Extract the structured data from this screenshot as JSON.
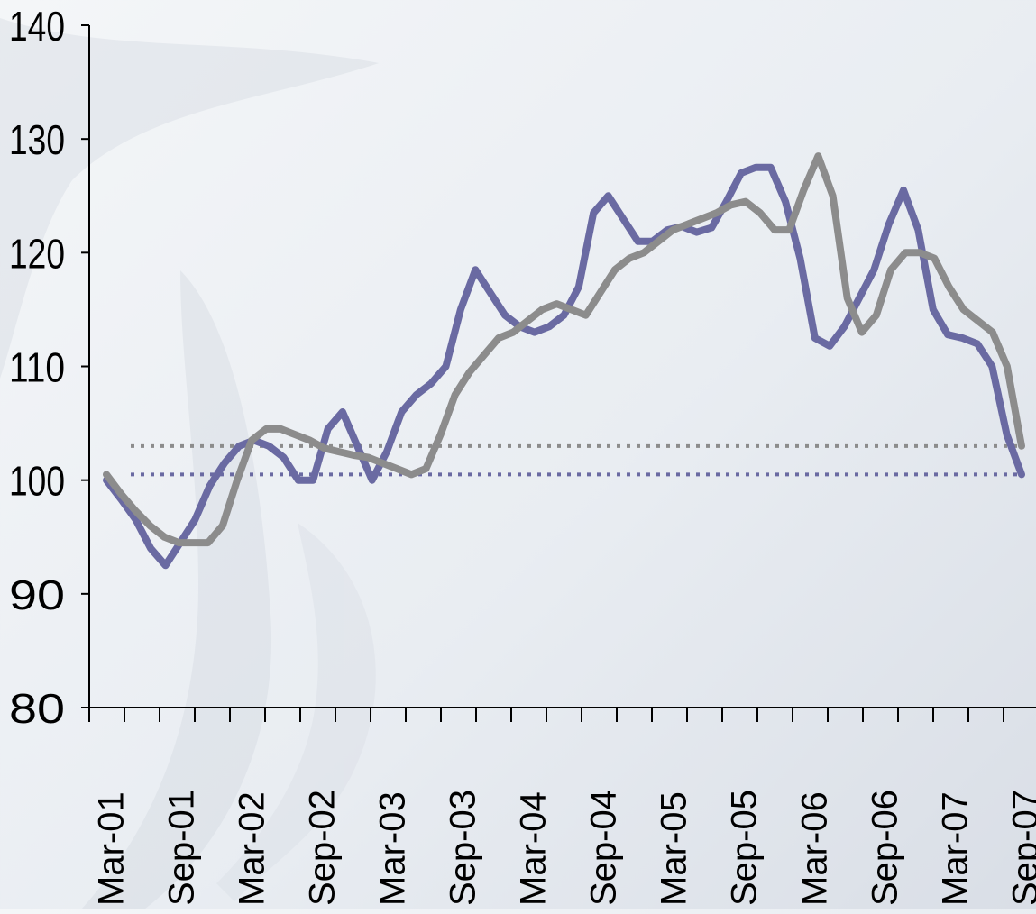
{
  "chart_data": {
    "type": "line",
    "title": "",
    "xlabel": "",
    "ylabel": "",
    "ylim": [
      80,
      140
    ],
    "yticks": [
      80,
      90,
      100,
      110,
      120,
      130,
      140
    ],
    "x_tick_labels": [
      "Mar-01",
      "Sep-01",
      "Mar-02",
      "Sep-02",
      "Mar-03",
      "Sep-03",
      "Mar-04",
      "Sep-04",
      "Mar-05",
      "Sep-05",
      "Mar-06",
      "Sep-06",
      "Mar-07",
      "Sep-07"
    ],
    "legend": "none",
    "grid": false,
    "colors": {
      "series_a": "#6a6aa2",
      "series_b": "#8c8c8c"
    },
    "series": [
      {
        "values": [
          100.0,
          98.3,
          96.5,
          94.0,
          92.5,
          94.5,
          96.5,
          99.5,
          101.5,
          103.0,
          103.5,
          103.0,
          102.0,
          100.0,
          100.0,
          104.5,
          106.0,
          103.0,
          100.0,
          102.5,
          106.0,
          107.5,
          108.5,
          110.0,
          115.0,
          118.5,
          116.5,
          114.5,
          113.5,
          113.0,
          113.5,
          114.5,
          117.0,
          123.5,
          125.0,
          123.0,
          121.0,
          121.0,
          122.0,
          122.3,
          121.8,
          122.2,
          124.5,
          127.0,
          127.5,
          127.5,
          124.5,
          119.5,
          112.5,
          111.8,
          113.5,
          116.0,
          118.5,
          122.5,
          125.5,
          122.0,
          115.0,
          112.8,
          112.5,
          112.0,
          110.0,
          104.0,
          100.5
        ],
        "reference_line": 100.5
      },
      {
        "values": [
          100.5,
          98.8,
          97.3,
          96.0,
          95.0,
          94.5,
          94.5,
          94.5,
          96.0,
          100.0,
          103.5,
          104.5,
          104.5,
          104.0,
          103.5,
          102.8,
          102.5,
          102.2,
          102.0,
          101.5,
          101.0,
          100.5,
          101.0,
          104.0,
          107.5,
          109.5,
          111.0,
          112.5,
          113.0,
          114.0,
          115.0,
          115.5,
          115.0,
          114.5,
          116.5,
          118.5,
          119.5,
          120.0,
          121.0,
          122.0,
          122.5,
          123.0,
          123.5,
          124.2,
          124.5,
          123.5,
          122.0,
          122.0,
          125.5,
          128.5,
          125.0,
          116.0,
          113.0,
          114.5,
          118.5,
          120.0,
          120.0,
          119.5,
          117.0,
          115.0,
          114.0,
          113.0,
          110.0,
          103.0
        ],
        "reference_line": 103.0
      }
    ]
  }
}
